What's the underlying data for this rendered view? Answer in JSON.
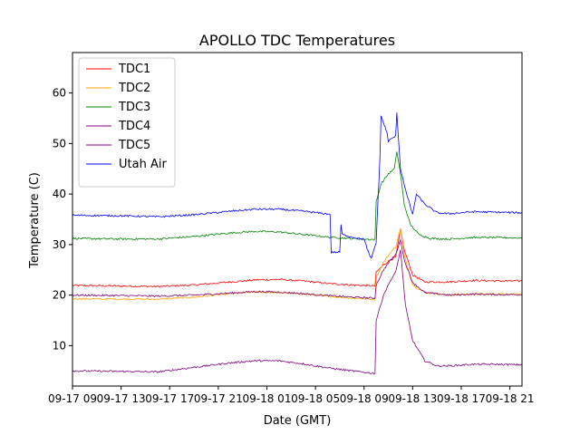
{
  "chart_data": {
    "type": "line",
    "title": "APOLLO TDC Temperatures",
    "xlabel": "Date (GMT)",
    "ylabel": "Temperature (C)",
    "xlim": [
      9,
      46
    ],
    "ylim": [
      2,
      68
    ],
    "grid": false,
    "legend_position": "top-left",
    "x_units": "hours since 2000-09-17 00:00 GMT",
    "x_ticks": [
      {
        "x": 9,
        "label": "09-17 09"
      },
      {
        "x": 13,
        "label": "09-17 13"
      },
      {
        "x": 17,
        "label": "09-17 17"
      },
      {
        "x": 21,
        "label": "09-17 21"
      },
      {
        "x": 25,
        "label": "09-18 01"
      },
      {
        "x": 29,
        "label": "09-18 05"
      },
      {
        "x": 33,
        "label": "09-18 09"
      },
      {
        "x": 37,
        "label": "09-18 13"
      },
      {
        "x": 41,
        "label": "09-18 17"
      },
      {
        "x": 45,
        "label": "09-18 21"
      }
    ],
    "y_ticks": [
      10,
      20,
      30,
      40,
      50,
      60
    ],
    "series": [
      {
        "name": "TDC1",
        "color": "#ff0000",
        "x": [
          9,
          13,
          16,
          19,
          22,
          24,
          26,
          28,
          30,
          32,
          33.9,
          34.0,
          34.6,
          35.2,
          35.6,
          36.0,
          36.3,
          37,
          38,
          40,
          42,
          44,
          46
        ],
        "y": [
          21.9,
          21.8,
          21.7,
          22.0,
          22.6,
          23.0,
          23.1,
          22.8,
          22.3,
          22.0,
          21.8,
          24.5,
          26.0,
          27.0,
          27.5,
          33.0,
          29.0,
          24.0,
          22.6,
          22.6,
          22.9,
          22.8,
          22.8
        ]
      },
      {
        "name": "TDC2",
        "color": "#ffa500",
        "x": [
          9,
          13,
          16,
          19,
          22,
          24,
          26,
          28,
          30,
          32,
          33.9,
          34.0,
          34.6,
          35.2,
          35.6,
          36.0,
          36.3,
          37,
          38,
          40,
          42,
          44,
          46
        ],
        "y": [
          19.3,
          19.2,
          19.2,
          19.6,
          20.3,
          20.6,
          20.5,
          20.2,
          19.8,
          19.4,
          19.2,
          23.5,
          26.5,
          28.5,
          29.5,
          33.2,
          28.0,
          22.0,
          20.5,
          20.0,
          20.2,
          20.2,
          20.3
        ]
      },
      {
        "name": "TDC3",
        "color": "#008000",
        "x": [
          9,
          13,
          16,
          19,
          22,
          24,
          26,
          28,
          30,
          32,
          33.9,
          34.0,
          34.4,
          35.0,
          35.5,
          35.7,
          36.0,
          36.3,
          36.8,
          37.5,
          38.5,
          40,
          42,
          44,
          46
        ],
        "y": [
          31.2,
          31.1,
          31.1,
          31.6,
          32.3,
          32.6,
          32.5,
          32.0,
          31.5,
          31.2,
          31.0,
          38.5,
          42.0,
          44.0,
          45.0,
          48.5,
          44.0,
          38.0,
          34.0,
          32.0,
          31.2,
          31.1,
          31.4,
          31.4,
          31.3
        ]
      },
      {
        "name": "TDC4",
        "color": "#800080",
        "x": [
          9,
          13,
          16,
          19,
          22,
          24,
          26,
          28,
          30,
          32,
          33.9,
          34.0,
          34.6,
          35.2,
          35.6,
          36.0,
          36.3,
          37,
          38,
          40,
          42,
          44,
          46
        ],
        "y": [
          20.0,
          19.9,
          19.8,
          20.0,
          20.4,
          20.7,
          20.6,
          20.3,
          19.9,
          19.6,
          19.4,
          22.0,
          25.0,
          27.0,
          28.0,
          31.0,
          27.0,
          22.5,
          20.5,
          20.0,
          20.2,
          20.1,
          20.1
        ]
      },
      {
        "name": "TDC5",
        "color": "#800080",
        "x": [
          9,
          13,
          16,
          19,
          22,
          24,
          26,
          28,
          30,
          32,
          33.9,
          34.0,
          34.6,
          35.2,
          35.6,
          36.0,
          36.4,
          37,
          38,
          39,
          40,
          42,
          44,
          46
        ],
        "y": [
          5.0,
          4.9,
          4.8,
          5.7,
          6.6,
          7.0,
          7.0,
          6.4,
          5.6,
          5.0,
          4.5,
          15.0,
          20.0,
          23.0,
          24.5,
          29.0,
          18.0,
          11.0,
          7.0,
          6.0,
          6.0,
          6.3,
          6.3,
          6.2
        ]
      },
      {
        "name": "Utah Air",
        "color": "#0000ff",
        "x": [
          9,
          13,
          16,
          19,
          22,
          24,
          26,
          28,
          30.2,
          30.3,
          31.0,
          31.1,
          31.2,
          32.0,
          33.0,
          33.5,
          33.6,
          34.0,
          34.3,
          34.4,
          34.9,
          35.0,
          35.6,
          35.7,
          36.0,
          36.5,
          37.0,
          37.3,
          38.0,
          39.0,
          40,
          42,
          44,
          46
        ],
        "y": [
          35.8,
          35.7,
          35.5,
          35.9,
          36.6,
          37.0,
          37.0,
          36.6,
          36.0,
          28.5,
          28.5,
          34.0,
          32.0,
          31.5,
          31.0,
          27.5,
          27.3,
          30.5,
          47.0,
          55.5,
          52.0,
          50.5,
          51.5,
          56.0,
          45.0,
          40.0,
          36.0,
          40.0,
          38.0,
          36.3,
          36.1,
          36.5,
          36.4,
          36.3
        ]
      }
    ]
  }
}
